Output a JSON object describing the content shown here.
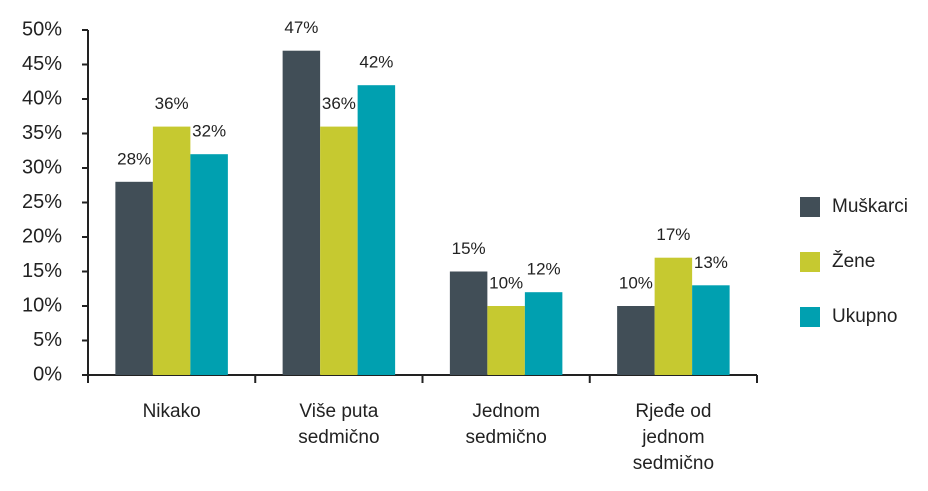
{
  "chart_data": {
    "type": "bar",
    "categories": [
      "Nikako",
      "Više puta sedmično",
      "Jednom sedmično",
      "Rjeđe od jednom sedmično"
    ],
    "series": [
      {
        "name": "Muškarci",
        "color": "#414e57",
        "values": [
          28,
          47,
          15,
          10
        ],
        "value_labels": [
          "28%",
          "47%",
          "15%",
          "10%"
        ]
      },
      {
        "name": "Žene",
        "color": "#c6c930",
        "values": [
          36,
          36,
          10,
          17
        ],
        "value_labels": [
          "36%",
          "36%",
          "10%",
          "17%"
        ]
      },
      {
        "name": "Ukupno",
        "color": "#00a0b0",
        "values": [
          32,
          42,
          12,
          13
        ],
        "value_labels": [
          "32%",
          "42%",
          "12%",
          "13%"
        ]
      }
    ],
    "ylim": [
      0,
      50
    ],
    "yticks": [
      {
        "value": 0,
        "label": "0%"
      },
      {
        "value": 5,
        "label": "5%"
      },
      {
        "value": 10,
        "label": "10%"
      },
      {
        "value": 15,
        "label": "15%"
      },
      {
        "value": 20,
        "label": "20%"
      },
      {
        "value": 25,
        "label": "25%"
      },
      {
        "value": 30,
        "label": "30%"
      },
      {
        "value": 35,
        "label": "35%"
      },
      {
        "value": 40,
        "label": "40%"
      },
      {
        "value": 45,
        "label": "45%"
      },
      {
        "value": 50,
        "label": "50%"
      }
    ],
    "grid": false,
    "legend": "right"
  }
}
